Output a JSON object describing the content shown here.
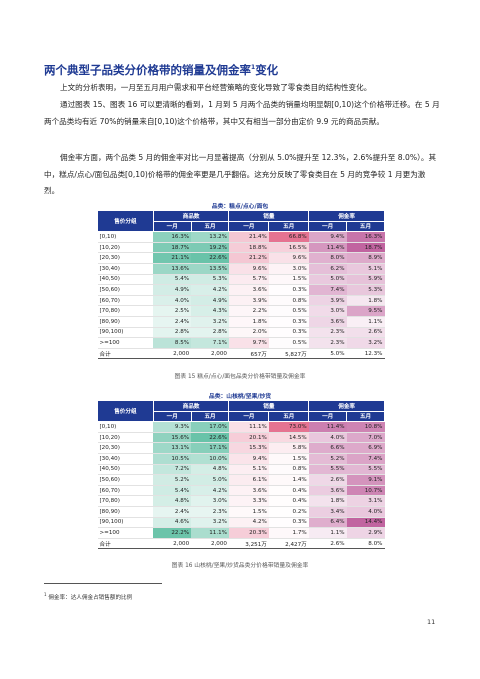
{
  "heading": {
    "text": "两个典型子品类分价格带的销量及佣金率",
    "sup": "1",
    "suffix": "变化"
  },
  "paragraphs": [
    "上文的分析表明，一月至五月用户需求和平台经营策略的变化导致了零食类目的结构性变化。",
    "通过图表 15、图表 16 可以更清晰的看到，1 月到 5 月两个品类的销量均明显朝[0,10)这个价格带迁移。在 5 月两个品类均有近 70%的销量来自[0,10)这个价格带，其中又有相当一部分由定价 9.9 元的商品贡献。",
    "佣金率方面，两个品类 5 月的佣金率对比一月显著提高（分别从 5.0%提升至 12.3%，2.6%提升至 8.0%）。其中，糕点/点心/面包品类[0,10)价格带的佣金率更是几乎翻倍。这充分反映了零食类目在 5 月的竞争较 1 月更为激烈。"
  ],
  "table_header": {
    "group_label": "售价分组",
    "col_groups": [
      "商品数",
      "销量",
      "佣金率"
    ],
    "months": [
      "一月",
      "五月",
      "一月",
      "五月",
      "一月",
      "五月"
    ]
  },
  "tables": [
    {
      "title": "品类：糕点/点心/面包",
      "caption": "图表 15 糕点/点心/面包品类分价格带销量及佣金率",
      "rows": [
        [
          "[0,10)",
          "16.3%",
          "13.2%",
          "21.4%",
          "66.8%",
          "9.4%",
          "16.3%"
        ],
        [
          "[10,20)",
          "18.7%",
          "19.2%",
          "18.8%",
          "16.5%",
          "11.4%",
          "18.7%"
        ],
        [
          "[20,30)",
          "21.1%",
          "22.6%",
          "21.2%",
          "9.6%",
          "8.0%",
          "8.9%"
        ],
        [
          "[30,40)",
          "13.6%",
          "13.5%",
          "9.6%",
          "3.0%",
          "6.2%",
          "5.1%"
        ],
        [
          "[40,50)",
          "5.4%",
          "5.3%",
          "5.7%",
          "1.5%",
          "5.0%",
          "5.9%"
        ],
        [
          "[50,60)",
          "4.9%",
          "4.2%",
          "3.6%",
          "0.3%",
          "7.4%",
          "5.3%"
        ],
        [
          "[60,70)",
          "4.0%",
          "4.9%",
          "3.9%",
          "0.8%",
          "3.9%",
          "1.8%"
        ],
        [
          "[70,80)",
          "2.5%",
          "4.3%",
          "2.2%",
          "0.5%",
          "3.0%",
          "9.5%"
        ],
        [
          "[80,90)",
          "2.4%",
          "3.2%",
          "1.8%",
          "0.3%",
          "3.6%",
          "1.1%"
        ],
        [
          "[90,100)",
          "2.8%",
          "2.8%",
          "2.0%",
          "0.3%",
          "2.3%",
          "2.6%"
        ],
        [
          ">=100",
          "8.5%",
          "7.1%",
          "9.7%",
          "0.5%",
          "2.3%",
          "3.2%"
        ]
      ],
      "total": [
        "合计",
        "2,000",
        "2,000",
        "657万",
        "5,827万",
        "5.0%",
        "12.3%"
      ]
    },
    {
      "title": "品类：山核桃/坚果/炒货",
      "caption": "图表 16 山核桃/坚果/炒货品类分价格带销量及佣金率",
      "rows": [
        [
          "[0,10)",
          "9.3%",
          "17.0%",
          "11.1%",
          "73.0%",
          "11.4%",
          "10.8%"
        ],
        [
          "[10,20)",
          "15.6%",
          "22.6%",
          "20.1%",
          "14.5%",
          "4.0%",
          "7.0%"
        ],
        [
          "[20,30)",
          "13.1%",
          "17.1%",
          "15.3%",
          "5.8%",
          "6.6%",
          "6.9%"
        ],
        [
          "[30,40)",
          "10.5%",
          "10.0%",
          "9.4%",
          "1.5%",
          "5.2%",
          "7.4%"
        ],
        [
          "[40,50)",
          "7.2%",
          "4.8%",
          "5.1%",
          "0.8%",
          "5.5%",
          "5.5%"
        ],
        [
          "[50,60)",
          "5.2%",
          "5.0%",
          "6.1%",
          "1.4%",
          "2.6%",
          "9.1%"
        ],
        [
          "[60,70)",
          "5.4%",
          "4.2%",
          "3.6%",
          "0.4%",
          "3.6%",
          "10.7%"
        ],
        [
          "[70,80)",
          "4.8%",
          "3.0%",
          "3.3%",
          "0.4%",
          "1.8%",
          "3.1%"
        ],
        [
          "[80,90)",
          "2.4%",
          "2.3%",
          "1.5%",
          "0.2%",
          "3.4%",
          "4.0%"
        ],
        [
          "[90,100)",
          "4.6%",
          "3.2%",
          "4.2%",
          "0.3%",
          "6.4%",
          "14.4%"
        ],
        [
          ">=100",
          "22.2%",
          "11.1%",
          "20.3%",
          "1.7%",
          "1.1%",
          "2.9%"
        ]
      ],
      "total": [
        "合计",
        "2,000",
        "2,000",
        "3,251万",
        "2,427万",
        "2.6%",
        "8.0%"
      ]
    }
  ],
  "colors": {
    "header_bg": "#1f3a93",
    "goods_heat": "#4fb89a",
    "sales_heat": "#e05a7e",
    "commission_heat": "#b6498f"
  },
  "footnote": {
    "sup": "1",
    "text": "佣金率：达人佣金占销售额的比例"
  },
  "page_number": "11"
}
